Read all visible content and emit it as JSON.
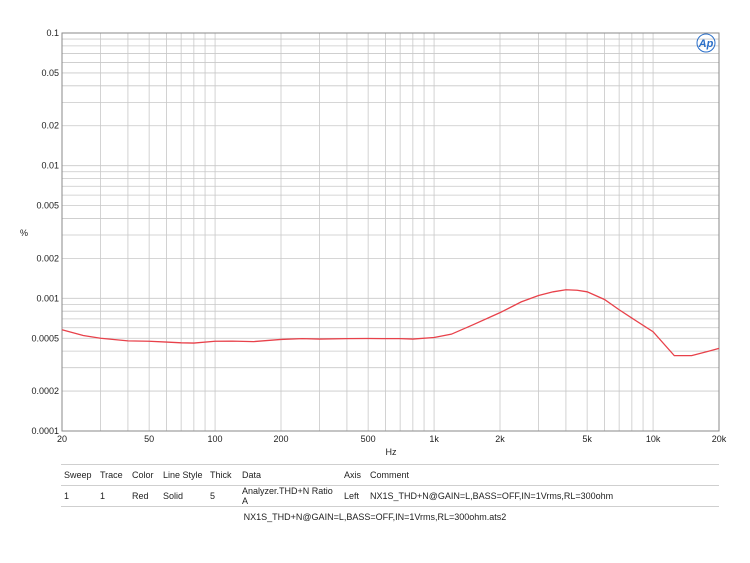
{
  "chart_data": {
    "type": "line",
    "xscale": "log",
    "yscale": "log",
    "xlim": [
      20,
      20000
    ],
    "ylim": [
      0.0001,
      0.1
    ],
    "xlabel": "Hz",
    "ylabel": "%",
    "x_ticks": [
      20,
      50,
      100,
      200,
      500,
      1000,
      2000,
      5000,
      10000,
      20000
    ],
    "x_tick_labels": [
      "20",
      "50",
      "100",
      "200",
      "500",
      "1k",
      "2k",
      "5k",
      "10k",
      "20k"
    ],
    "y_ticks": [
      0.1,
      0.05,
      0.02,
      0.01,
      0.005,
      0.002,
      0.001,
      0.0005,
      0.0002,
      0.0001
    ],
    "y_tick_labels": [
      "0.1",
      "0.05",
      "0.02",
      "0.01",
      "0.005",
      "0.002",
      "0.001",
      "0.0005",
      "0.0002",
      "0.0001"
    ],
    "grid": true,
    "series": [
      {
        "color": "#e8414a",
        "x": [
          20,
          25,
          30,
          40,
          50,
          60,
          70,
          80,
          100,
          120,
          150,
          200,
          250,
          300,
          400,
          500,
          600,
          700,
          800,
          1000,
          1200,
          1500,
          2000,
          2500,
          3000,
          3500,
          4000,
          4500,
          5000,
          6000,
          7000,
          8000,
          10000,
          12500,
          15000,
          18000,
          20000
        ],
        "y": [
          0.00058,
          0.000525,
          0.0005,
          0.000478,
          0.000475,
          0.000468,
          0.000462,
          0.00046,
          0.000475,
          0.000476,
          0.000472,
          0.00049,
          0.000497,
          0.000493,
          0.000497,
          0.000498,
          0.000497,
          0.000497,
          0.000493,
          0.000507,
          0.000537,
          0.00063,
          0.00078,
          0.00094,
          0.00105,
          0.00112,
          0.00116,
          0.00115,
          0.00112,
          0.00098,
          0.00082,
          0.00071,
          0.00056,
          0.00037,
          0.00037,
          0.0004,
          0.00042
        ]
      }
    ]
  },
  "logo": {
    "text": "Ap",
    "color": "#2a6fc9"
  },
  "legend_table": {
    "headers": [
      "Sweep",
      "Trace",
      "Color",
      "Line Style",
      "Thick",
      "Data",
      "Axis",
      "Comment"
    ],
    "rows": [
      [
        "1",
        "1",
        "Red",
        "Solid",
        "5",
        "Analyzer.THD+N Ratio A",
        "Left",
        "NX1S_THD+N@GAIN=L,BASS=OFF,IN=1Vrms,RL=300ohm"
      ]
    ]
  },
  "file_name": "NX1S_THD+N@GAIN=L,BASS=OFF,IN=1Vrms,RL=300ohm.ats2"
}
